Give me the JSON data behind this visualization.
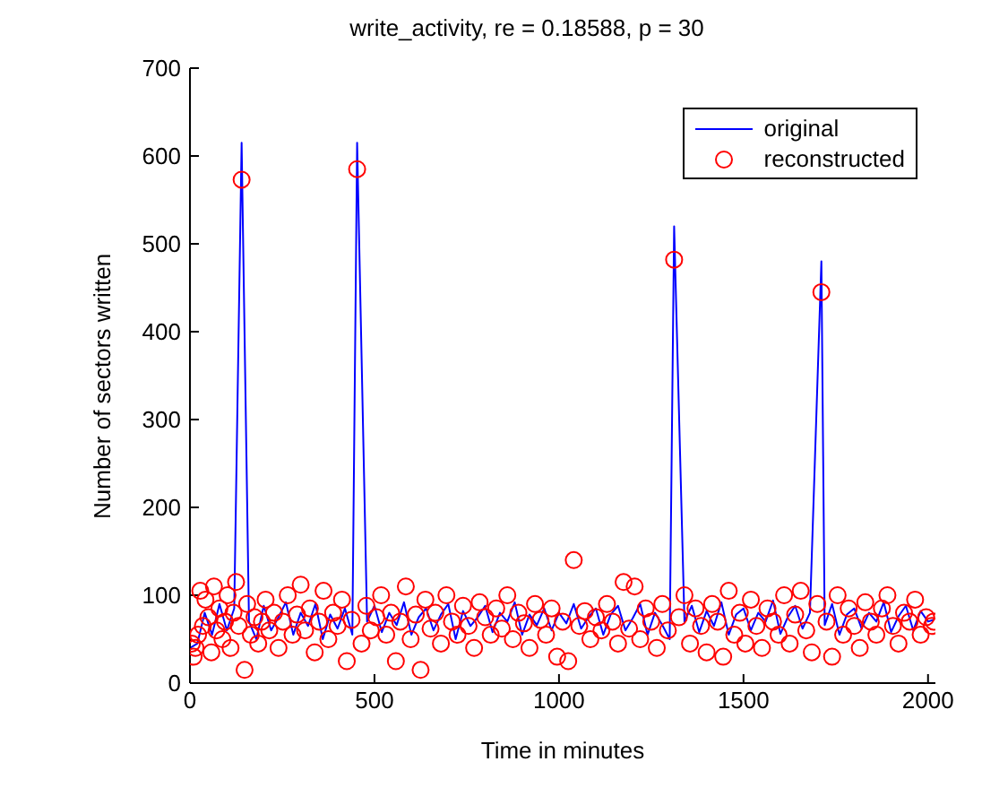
{
  "chart_data": {
    "type": "line",
    "title": "write_activity, re = 0.18588, p = 30",
    "xlabel": "Time in minutes",
    "ylabel": "Number of sectors written",
    "xlim": [
      0,
      2020
    ],
    "xticks": [
      0,
      500,
      1000,
      1500,
      2000
    ],
    "ylim": [
      0,
      700
    ],
    "yticks": [
      0,
      100,
      200,
      300,
      400,
      500,
      600,
      700
    ],
    "grid": false,
    "legend": "top right",
    "series": [
      {
        "name": "original",
        "color": "#0000ff",
        "marker": "none",
        "line_style": "solid",
        "x": [
          0,
          20,
          40,
          60,
          80,
          100,
          120,
          140,
          160,
          180,
          200,
          220,
          240,
          260,
          280,
          300,
          320,
          340,
          360,
          380,
          400,
          420,
          440,
          453,
          480,
          500,
          520,
          540,
          560,
          580,
          600,
          620,
          640,
          660,
          680,
          700,
          720,
          740,
          760,
          780,
          800,
          820,
          840,
          860,
          880,
          900,
          920,
          940,
          960,
          980,
          1000,
          1020,
          1040,
          1060,
          1080,
          1100,
          1120,
          1140,
          1160,
          1180,
          1200,
          1220,
          1240,
          1260,
          1280,
          1300,
          1312,
          1340,
          1360,
          1380,
          1400,
          1420,
          1440,
          1460,
          1480,
          1500,
          1520,
          1540,
          1560,
          1580,
          1600,
          1620,
          1640,
          1660,
          1680,
          1711,
          1720,
          1740,
          1760,
          1780,
          1800,
          1820,
          1840,
          1860,
          1880,
          1900,
          1920,
          1940,
          1960,
          1980,
          2000,
          2015
        ],
        "values": [
          40,
          45,
          80,
          55,
          90,
          60,
          85,
          615,
          70,
          50,
          88,
          60,
          75,
          92,
          55,
          80,
          65,
          90,
          50,
          78,
          62,
          85,
          55,
          615,
          70,
          88,
          58,
          80,
          66,
          92,
          55,
          75,
          85,
          60,
          78,
          90,
          50,
          82,
          65,
          75,
          88,
          58,
          80,
          70,
          92,
          55,
          78,
          66,
          85,
          60,
          80,
          68,
          90,
          62,
          75,
          85,
          55,
          78,
          88,
          60,
          74,
          90,
          55,
          80,
          66,
          50,
          520,
          70,
          88,
          58,
          82,
          65,
          92,
          55,
          78,
          85,
          60,
          80,
          70,
          94,
          56,
          75,
          88,
          62,
          80,
          480,
          66,
          90,
          55,
          78,
          85,
          62,
          80,
          70,
          92,
          58,
          76,
          88,
          60,
          82,
          70,
          72
        ]
      },
      {
        "name": "reconstructed",
        "type": "scatter",
        "color": "#ff0000",
        "marker": "circle",
        "x": [
          5,
          10,
          15,
          22,
          28,
          35,
          42,
          50,
          58,
          65,
          72,
          80,
          88,
          95,
          102,
          110,
          118,
          125,
          132,
          140,
          148,
          155,
          165,
          175,
          185,
          195,
          205,
          215,
          228,
          240,
          252,
          265,
          278,
          290,
          300,
          312,
          325,
          338,
          350,
          362,
          375,
          388,
          400,
          412,
          425,
          438,
          453,
          465,
          478,
          490,
          505,
          518,
          532,
          545,
          558,
          570,
          585,
          598,
          612,
          625,
          638,
          652,
          665,
          680,
          695,
          710,
          725,
          740,
          755,
          770,
          785,
          800,
          815,
          830,
          845,
          860,
          875,
          890,
          905,
          920,
          935,
          950,
          965,
          980,
          995,
          1010,
          1025,
          1040,
          1055,
          1070,
          1085,
          1100,
          1115,
          1130,
          1145,
          1160,
          1175,
          1190,
          1205,
          1220,
          1235,
          1250,
          1265,
          1280,
          1295,
          1312,
          1325,
          1340,
          1355,
          1370,
          1385,
          1400,
          1415,
          1430,
          1445,
          1460,
          1475,
          1490,
          1505,
          1520,
          1535,
          1550,
          1565,
          1580,
          1595,
          1610,
          1625,
          1640,
          1655,
          1670,
          1685,
          1700,
          1711,
          1725,
          1740,
          1755,
          1770,
          1785,
          1800,
          1815,
          1830,
          1845,
          1860,
          1875,
          1890,
          1905,
          1920,
          1935,
          1950,
          1965,
          1980,
          1995,
          2010,
          2015
        ],
        "values": [
          45,
          30,
          40,
          55,
          105,
          65,
          95,
          75,
          35,
          110,
          60,
          85,
          50,
          70,
          100,
          40,
          80,
          115,
          65,
          573,
          15,
          90,
          55,
          75,
          45,
          70,
          95,
          60,
          80,
          40,
          70,
          100,
          55,
          78,
          112,
          60,
          85,
          35,
          70,
          105,
          50,
          80,
          65,
          95,
          25,
          72,
          585,
          45,
          88,
          60,
          75,
          100,
          55,
          80,
          25,
          70,
          110,
          50,
          78,
          15,
          95,
          62,
          80,
          45,
          100,
          70,
          55,
          88,
          65,
          40,
          92,
          75,
          55,
          85,
          62,
          100,
          50,
          80,
          68,
          40,
          90,
          72,
          55,
          85,
          30,
          70,
          25,
          140,
          65,
          82,
          50,
          75,
          60,
          90,
          70,
          45,
          115,
          62,
          110,
          50,
          85,
          70,
          40,
          90,
          60,
          482,
          75,
          100,
          45,
          85,
          65,
          35,
          90,
          70,
          30,
          105,
          55,
          80,
          45,
          95,
          65,
          40,
          85,
          70,
          55,
          100,
          45,
          78,
          105,
          60,
          35,
          90,
          445,
          70,
          30,
          100,
          55,
          85,
          65,
          40,
          92,
          70,
          55,
          85,
          100,
          65,
          45,
          80,
          70,
          95,
          55,
          75,
          65,
          70
        ]
      }
    ]
  }
}
